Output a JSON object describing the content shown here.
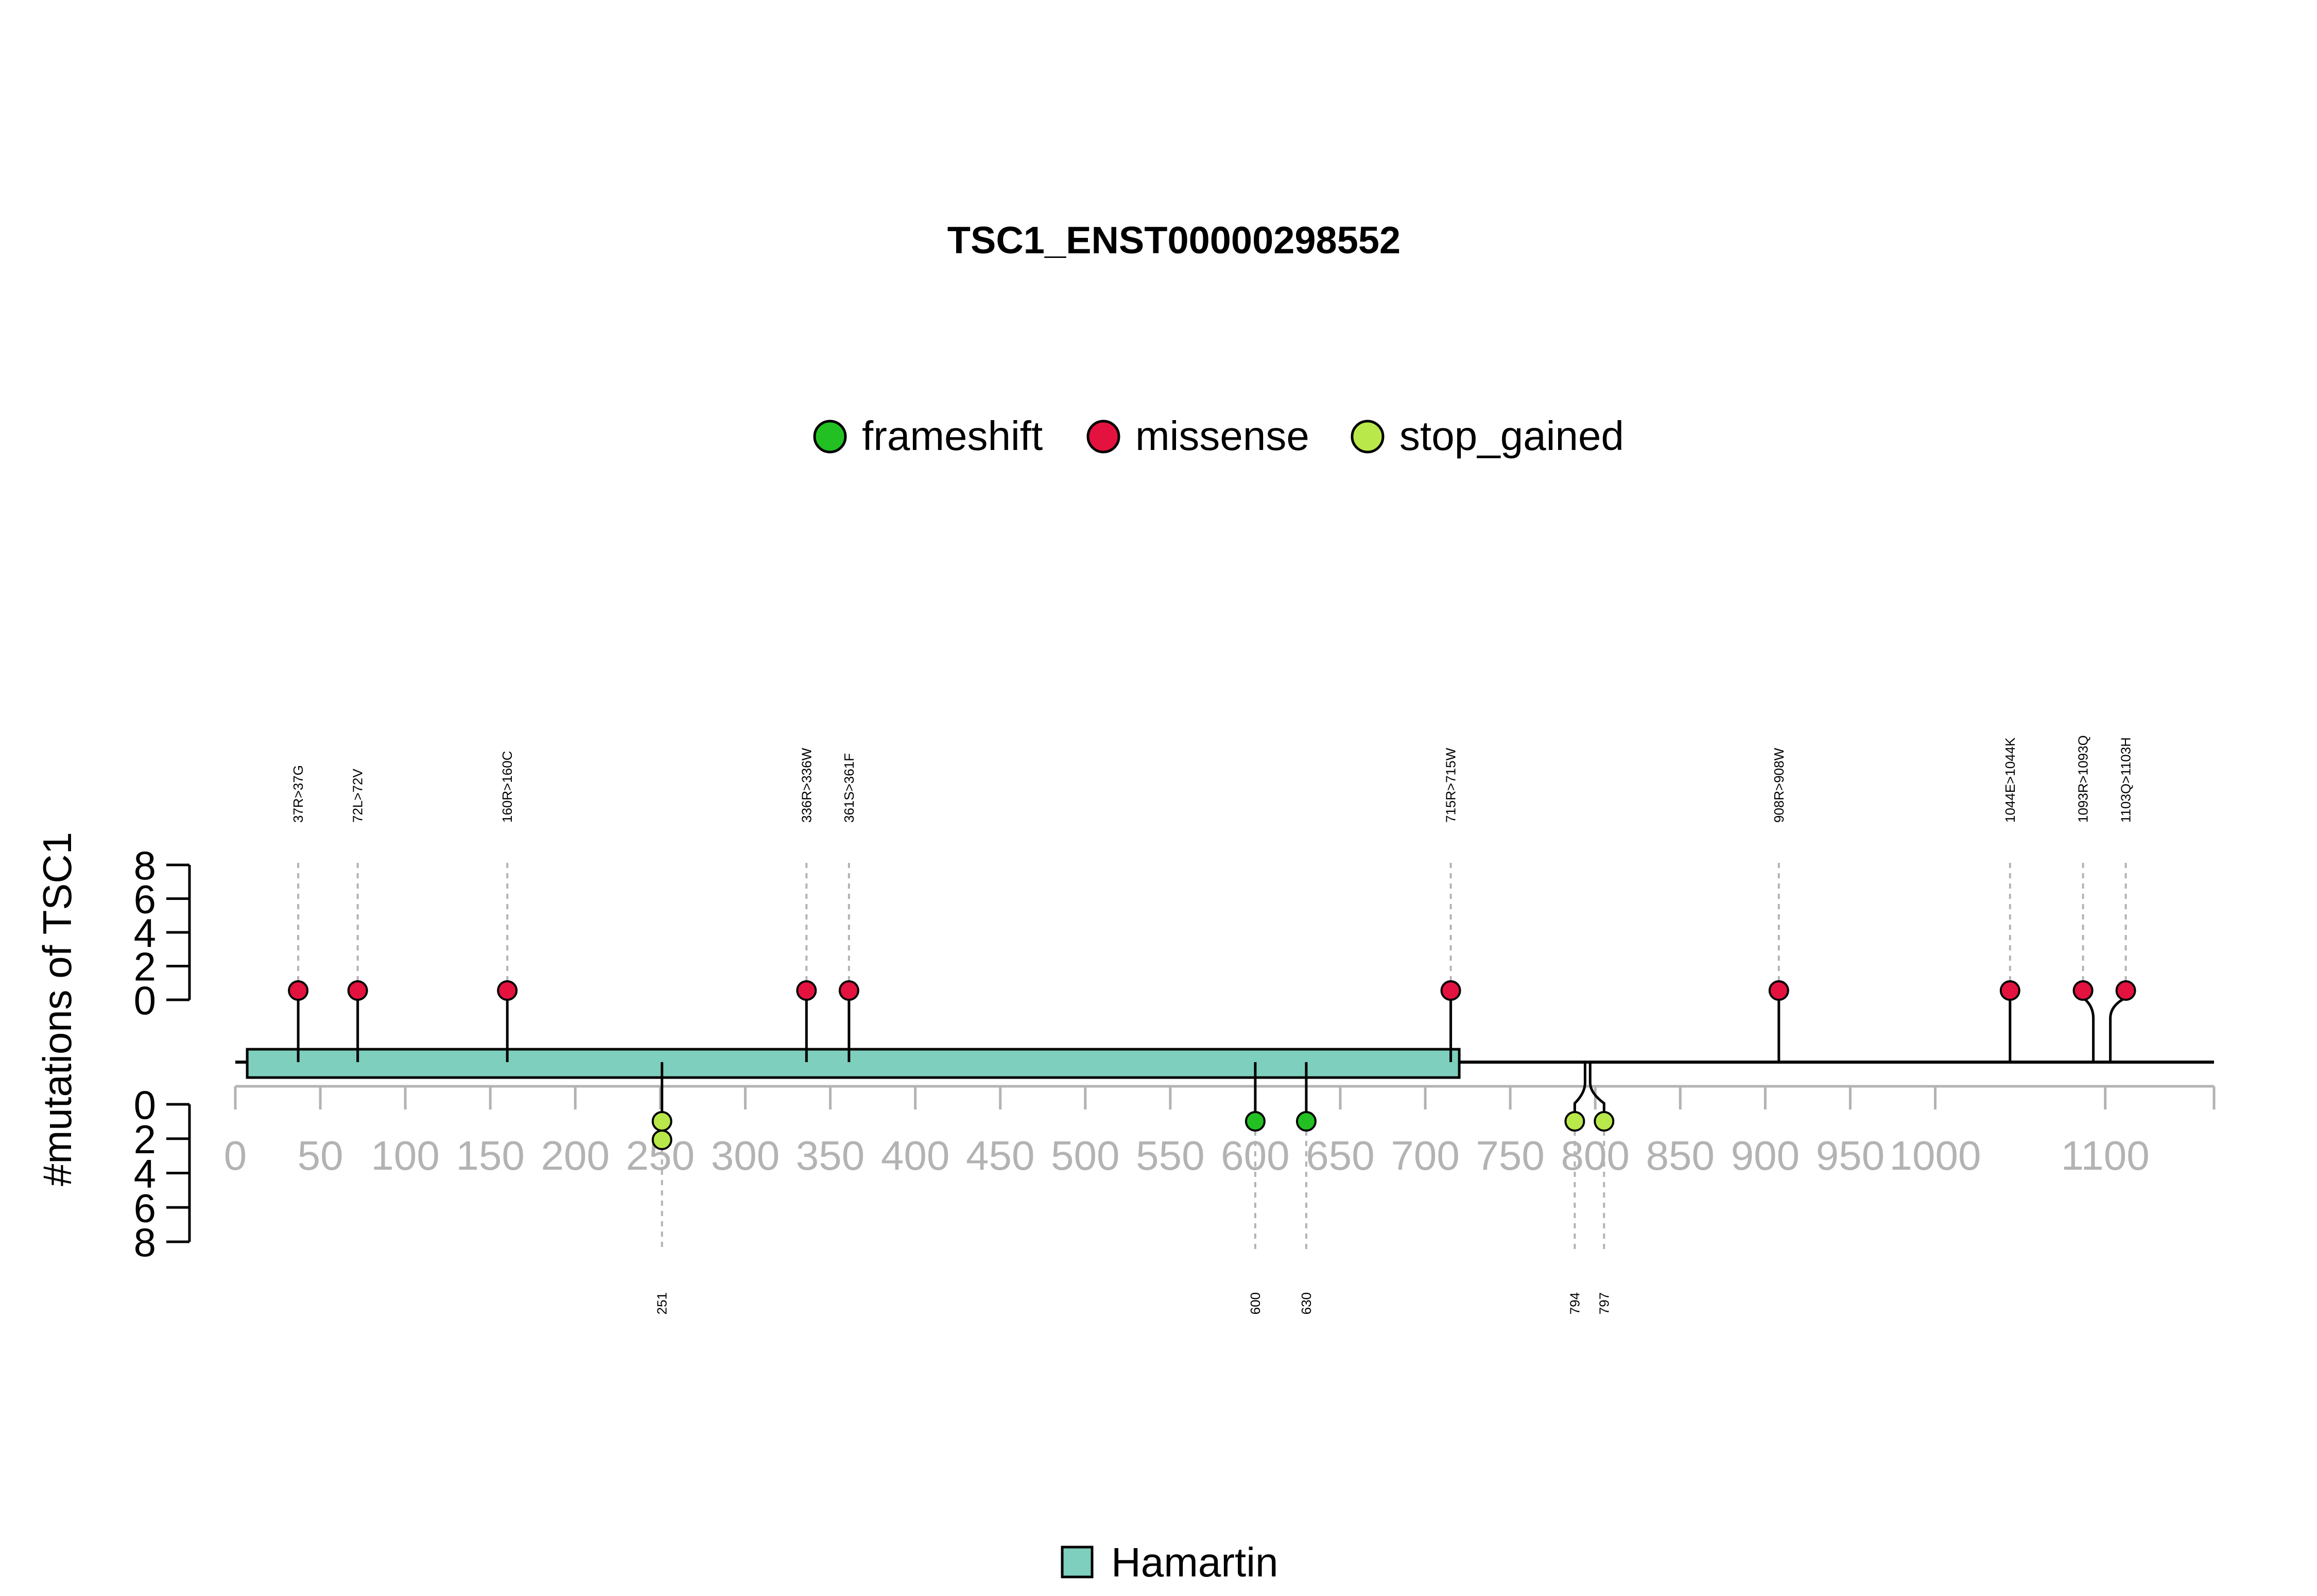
{
  "chart_data": {
    "type": "lollipop",
    "title": "TSC1_ENST00000298552",
    "ylabel": "#mutations of TSC1",
    "protein_length": 1164,
    "xlim": [
      0,
      1150
    ],
    "xticks": [
      0,
      50,
      100,
      150,
      200,
      250,
      300,
      350,
      400,
      450,
      500,
      550,
      600,
      650,
      700,
      750,
      800,
      850,
      900,
      950,
      1000,
      1100
    ],
    "ylim": [
      0,
      8
    ],
    "yticks_upper": [
      8,
      6,
      4,
      2,
      0
    ],
    "yticks_lower": [
      0,
      2,
      4,
      6,
      8
    ],
    "legend": {
      "position": "top",
      "entries": [
        {
          "name": "frameshift",
          "color": "#22c022"
        },
        {
          "name": "missense",
          "color": "#e3123f"
        },
        {
          "name": "stop_gained",
          "color": "#b9e84a"
        }
      ]
    },
    "domains": [
      {
        "name": "Hamartin",
        "start": 7,
        "end": 720,
        "color": "#7ecfbd"
      }
    ],
    "upper_mutations": [
      {
        "pos": 37,
        "label": "37R>37G",
        "type": "missense",
        "count": 1
      },
      {
        "pos": 72,
        "label": "72L>72V",
        "type": "missense",
        "count": 1
      },
      {
        "pos": 160,
        "label": "160R>160C",
        "type": "missense",
        "count": 1
      },
      {
        "pos": 336,
        "label": "336R>336W",
        "type": "missense",
        "count": 1
      },
      {
        "pos": 361,
        "label": "361S>361F",
        "type": "missense",
        "count": 1
      },
      {
        "pos": 715,
        "label": "715R>715W",
        "type": "missense",
        "count": 1
      },
      {
        "pos": 908,
        "label": "908R>908W",
        "type": "missense",
        "count": 1
      },
      {
        "pos": 1044,
        "label": "1044E>1044K",
        "type": "missense",
        "count": 1
      },
      {
        "pos": 1093,
        "label": "1093R>1093Q",
        "type": "missense",
        "count": 1
      },
      {
        "pos": 1103,
        "label": "1103Q>1103H",
        "type": "missense",
        "count": 1
      }
    ],
    "lower_mutations": [
      {
        "pos": 251,
        "label": "251",
        "type": "stop_gained",
        "count": 2
      },
      {
        "pos": 600,
        "label": "600",
        "type": "frameshift",
        "count": 1
      },
      {
        "pos": 630,
        "label": "630",
        "type": "frameshift",
        "count": 1
      },
      {
        "pos": 794,
        "label": "794",
        "type": "stop_gained",
        "count": 1
      },
      {
        "pos": 797,
        "label": "797",
        "type": "stop_gained",
        "count": 1
      }
    ]
  }
}
